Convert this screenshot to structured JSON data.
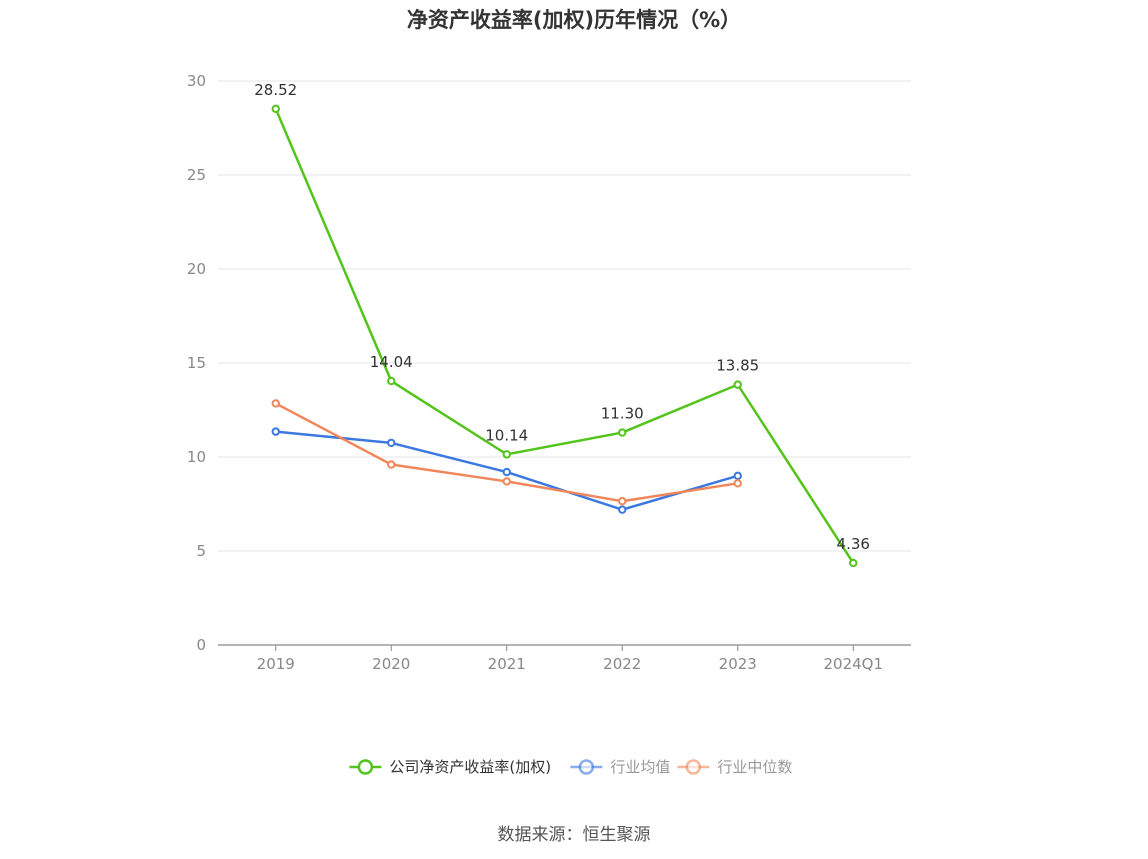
{
  "chart_data": {
    "type": "line",
    "title": "净资产收益率(加权)历年情况（%）",
    "categories": [
      "2019",
      "2020",
      "2021",
      "2022",
      "2023",
      "2024Q1"
    ],
    "ylim": [
      0,
      30
    ],
    "yticks": [
      0,
      5,
      10,
      15,
      20,
      25,
      30
    ],
    "grid": true,
    "legend_position": "bottom",
    "series": [
      {
        "name": "公司净资产收益率(加权)",
        "color": "#52c41a",
        "values": [
          28.52,
          14.04,
          10.14,
          11.3,
          13.85,
          4.36
        ],
        "labels": [
          "28.52",
          "14.04",
          "10.14",
          "11.30",
          "13.85",
          "4.36"
        ]
      },
      {
        "name": "行业均值",
        "color": "#3b78e0",
        "values": [
          11.35,
          10.75,
          9.2,
          7.2,
          9.0,
          null
        ]
      },
      {
        "name": "行业中位数",
        "color": "#f08659",
        "values": [
          12.85,
          9.6,
          8.7,
          7.65,
          8.6,
          null
        ]
      }
    ]
  },
  "source_text": "数据来源：恒生聚源"
}
